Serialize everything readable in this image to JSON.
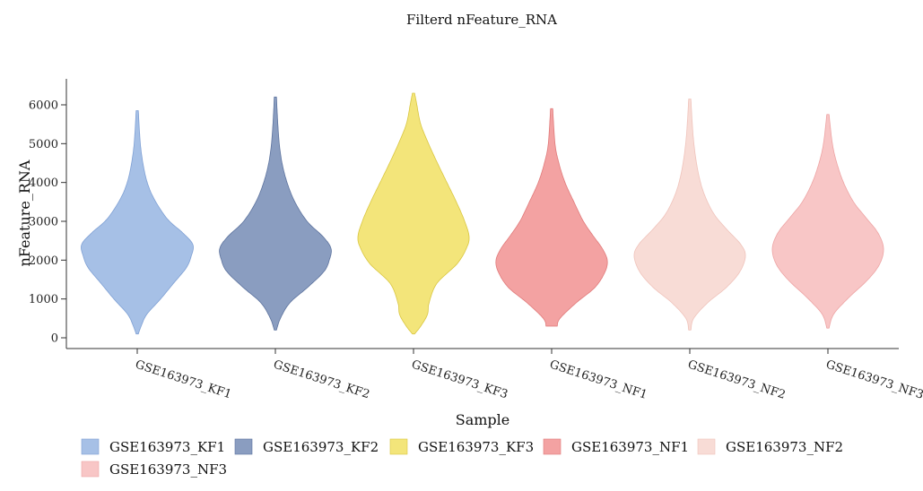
{
  "chart_data": {
    "type": "violin",
    "title": "Filterd nFeature_RNA",
    "xlabel": "Sample",
    "ylabel": "nFeature_RNA",
    "ylim": [
      0,
      6000
    ],
    "yticks": [
      0,
      1000,
      2000,
      3000,
      4000,
      5000,
      6000
    ],
    "legend_position": "bottom",
    "grid": false,
    "series": [
      {
        "name": "GSE163973_KF1",
        "color": "#A6C0E6",
        "stroke": "#7FA0D4",
        "min": 100,
        "max": 5850,
        "profile": [
          [
            100,
            0.02
          ],
          [
            300,
            0.07
          ],
          [
            600,
            0.17
          ],
          [
            1000,
            0.42
          ],
          [
            1400,
            0.65
          ],
          [
            1800,
            0.88
          ],
          [
            2100,
            0.97
          ],
          [
            2400,
            1.0
          ],
          [
            2700,
            0.82
          ],
          [
            3000,
            0.58
          ],
          [
            3300,
            0.42
          ],
          [
            3700,
            0.26
          ],
          [
            4100,
            0.16
          ],
          [
            4600,
            0.09
          ],
          [
            5100,
            0.05
          ],
          [
            5850,
            0.02
          ]
        ]
      },
      {
        "name": "GSE163973_KF2",
        "color": "#8A9DC0",
        "stroke": "#5D739E",
        "min": 200,
        "max": 6200,
        "profile": [
          [
            200,
            0.02
          ],
          [
            500,
            0.09
          ],
          [
            900,
            0.26
          ],
          [
            1300,
            0.58
          ],
          [
            1700,
            0.87
          ],
          [
            2000,
            0.97
          ],
          [
            2300,
            1.0
          ],
          [
            2600,
            0.86
          ],
          [
            3000,
            0.57
          ],
          [
            3500,
            0.35
          ],
          [
            4000,
            0.21
          ],
          [
            4500,
            0.12
          ],
          [
            5000,
            0.07
          ],
          [
            5600,
            0.04
          ],
          [
            6200,
            0.02
          ]
        ]
      },
      {
        "name": "GSE163973_KF3",
        "color": "#F3E57A",
        "stroke": "#D9C640",
        "min": 100,
        "max": 6300,
        "profile": [
          [
            100,
            0.02
          ],
          [
            300,
            0.13
          ],
          [
            600,
            0.25
          ],
          [
            900,
            0.28
          ],
          [
            1400,
            0.42
          ],
          [
            1900,
            0.78
          ],
          [
            2300,
            0.95
          ],
          [
            2600,
            1.0
          ],
          [
            3000,
            0.92
          ],
          [
            3500,
            0.77
          ],
          [
            4000,
            0.6
          ],
          [
            4500,
            0.43
          ],
          [
            5000,
            0.27
          ],
          [
            5500,
            0.13
          ],
          [
            6000,
            0.06
          ],
          [
            6300,
            0.02
          ]
        ]
      },
      {
        "name": "GSE163973_NF1",
        "color": "#F3A2A2",
        "stroke": "#E07A7A",
        "min": 300,
        "max": 5900,
        "profile": [
          [
            300,
            0.1
          ],
          [
            500,
            0.15
          ],
          [
            900,
            0.44
          ],
          [
            1300,
            0.78
          ],
          [
            1700,
            0.96
          ],
          [
            2000,
            1.0
          ],
          [
            2300,
            0.91
          ],
          [
            2600,
            0.76
          ],
          [
            3000,
            0.57
          ],
          [
            3500,
            0.4
          ],
          [
            4000,
            0.24
          ],
          [
            4500,
            0.13
          ],
          [
            5000,
            0.06
          ],
          [
            5900,
            0.02
          ]
        ]
      },
      {
        "name": "GSE163973_NF2",
        "color": "#F8DCD6",
        "stroke": "#EFC3BB",
        "min": 200,
        "max": 6150,
        "profile": [
          [
            200,
            0.02
          ],
          [
            500,
            0.07
          ],
          [
            900,
            0.32
          ],
          [
            1300,
            0.66
          ],
          [
            1700,
            0.9
          ],
          [
            2100,
            1.0
          ],
          [
            2400,
            0.92
          ],
          [
            2800,
            0.66
          ],
          [
            3200,
            0.43
          ],
          [
            3700,
            0.26
          ],
          [
            4200,
            0.16
          ],
          [
            4800,
            0.09
          ],
          [
            5400,
            0.05
          ],
          [
            6150,
            0.02
          ]
        ]
      },
      {
        "name": "GSE163973_NF3",
        "color": "#F8C6C6",
        "stroke": "#EDA4A4",
        "min": 250,
        "max": 5750,
        "profile": [
          [
            250,
            0.02
          ],
          [
            600,
            0.1
          ],
          [
            1000,
            0.35
          ],
          [
            1500,
            0.72
          ],
          [
            1900,
            0.93
          ],
          [
            2300,
            1.0
          ],
          [
            2700,
            0.9
          ],
          [
            3100,
            0.68
          ],
          [
            3500,
            0.46
          ],
          [
            4000,
            0.28
          ],
          [
            4500,
            0.16
          ],
          [
            5000,
            0.08
          ],
          [
            5750,
            0.02
          ]
        ]
      }
    ]
  }
}
